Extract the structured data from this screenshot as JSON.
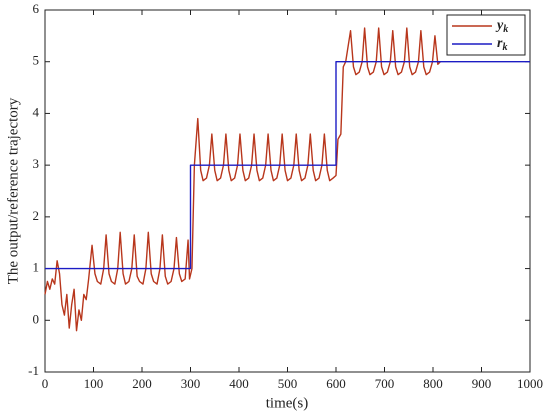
{
  "chart_data": {
    "type": "line",
    "xlabel": "time(s)",
    "ylabel": "The output/reference trajectory",
    "xlim": [
      0,
      1000
    ],
    "xticks": [
      0,
      100,
      200,
      300,
      400,
      500,
      600,
      700,
      800,
      900,
      1000
    ],
    "ylim": [
      -1,
      6
    ],
    "yticks": [
      -1,
      0,
      1,
      2,
      3,
      4,
      5,
      6
    ],
    "legend": "upper right",
    "series": [
      {
        "name": "y",
        "name_subscript": "k",
        "color": "#b8361c",
        "x": [
          0,
          5,
          10,
          15,
          20,
          25,
          30,
          35,
          40,
          45,
          50,
          55,
          60,
          65,
          70,
          75,
          80,
          85,
          90,
          97,
          103,
          108,
          115,
          121,
          126,
          132,
          137,
          144,
          150,
          155,
          161,
          166,
          173,
          179,
          184,
          190,
          195,
          202,
          208,
          213,
          219,
          224,
          231,
          237,
          242,
          248,
          253,
          260,
          266,
          271,
          277,
          282,
          289,
          295,
          298,
          303,
          308,
          315,
          321,
          326,
          333,
          339,
          344,
          350,
          355,
          362,
          368,
          373,
          379,
          384,
          391,
          397,
          402,
          408,
          413,
          420,
          426,
          431,
          437,
          442,
          449,
          455,
          460,
          466,
          471,
          478,
          484,
          489,
          495,
          500,
          507,
          513,
          518,
          524,
          529,
          536,
          542,
          547,
          553,
          558,
          565,
          571,
          576,
          582,
          587,
          594,
          600,
          604,
          610,
          615,
          620,
          630,
          636,
          641,
          648,
          654,
          659,
          665,
          670,
          677,
          683,
          688,
          694,
          699,
          706,
          712,
          717,
          723,
          728,
          735,
          741,
          746,
          752,
          757,
          764,
          770,
          775,
          781,
          786,
          793,
          799,
          804,
          810,
          815
        ],
        "values": [
          0.5,
          0.75,
          0.6,
          0.8,
          0.7,
          1.15,
          0.9,
          0.3,
          0.1,
          0.5,
          -0.15,
          0.3,
          0.6,
          -0.2,
          0.2,
          0.0,
          0.5,
          0.4,
          0.8,
          1.45,
          0.9,
          0.75,
          0.7,
          1.0,
          1.65,
          0.9,
          0.75,
          0.7,
          1.0,
          1.7,
          0.9,
          0.7,
          0.75,
          1.0,
          1.65,
          0.85,
          0.75,
          0.7,
          1.0,
          1.7,
          0.9,
          0.75,
          0.7,
          1.0,
          1.65,
          0.85,
          0.7,
          0.75,
          1.0,
          1.6,
          0.9,
          0.75,
          0.8,
          1.55,
          0.8,
          1.0,
          3.0,
          3.9,
          2.9,
          2.7,
          2.75,
          3.0,
          3.6,
          2.9,
          2.7,
          2.75,
          3.0,
          3.6,
          2.9,
          2.7,
          2.75,
          3.0,
          3.6,
          2.9,
          2.7,
          2.75,
          3.0,
          3.6,
          2.9,
          2.7,
          2.75,
          3.0,
          3.6,
          2.9,
          2.7,
          2.75,
          3.0,
          3.6,
          2.9,
          2.7,
          2.75,
          3.0,
          3.6,
          2.9,
          2.7,
          2.75,
          3.0,
          3.6,
          2.9,
          2.7,
          2.75,
          3.0,
          3.6,
          2.9,
          2.7,
          2.75,
          2.8,
          3.5,
          3.6,
          4.9,
          5.0,
          5.6,
          4.9,
          4.75,
          4.8,
          5.0,
          5.65,
          4.9,
          4.75,
          4.8,
          5.0,
          5.65,
          4.9,
          4.75,
          4.8,
          5.0,
          5.6,
          4.9,
          4.75,
          4.8,
          5.0,
          5.65,
          4.9,
          4.75,
          4.8,
          5.0,
          5.6,
          4.9,
          4.75,
          4.8,
          5.0,
          5.5,
          4.95,
          5.0
        ]
      },
      {
        "name": "r",
        "name_subscript": "k",
        "color": "#1c1cc4",
        "x": [
          0,
          300,
          300,
          600,
          600,
          1000
        ],
        "values": [
          1,
          1,
          3,
          3,
          5,
          5
        ]
      }
    ]
  }
}
